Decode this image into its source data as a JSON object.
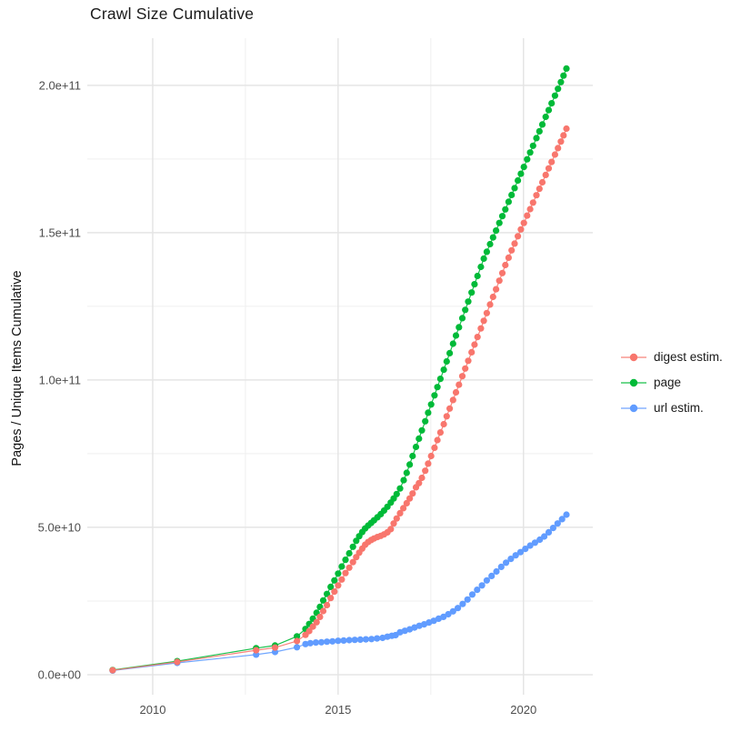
{
  "header": {
    "title": "Crawl Size Cumulative"
  },
  "chart_data": {
    "type": "line",
    "title": "Crawl Size Cumulative",
    "xlabel": "",
    "ylabel": "Pages / Unique Items Cumulative",
    "grid": true,
    "legend_position": "right",
    "value_unit": "1e9 (values below are billions of items)",
    "xlim": [
      2008.235,
      2021.87
    ],
    "ylim_e9": [
      -6.8,
      216.0
    ],
    "x_ticks": [
      {
        "label": "2010",
        "value": 2010
      },
      {
        "label": "2015",
        "value": 2015
      },
      {
        "label": "2020",
        "value": 2020
      }
    ],
    "x_minor": [
      2012.5,
      2017.5
    ],
    "y_ticks": [
      {
        "label": "0.0e+00",
        "value": 0
      },
      {
        "label": "5.0e+10",
        "value": 50
      },
      {
        "label": "1.0e+11",
        "value": 100
      },
      {
        "label": "1.5e+11",
        "value": 150
      },
      {
        "label": "2.0e+11",
        "value": 200
      }
    ],
    "y_minor": [
      25,
      75,
      125,
      175
    ],
    "colors": {
      "digest": "#F8766D",
      "page": "#00BA38",
      "url": "#619CFF",
      "grid_major": "#e5e5e5",
      "grid_minor": "#efefef",
      "tick_text": "#4d4d4d",
      "title_text": "#1a1a1a"
    },
    "series": [
      {
        "name": "digest estim.",
        "color": "#F8766D",
        "points": [
          [
            2008.92,
            1.5
          ],
          [
            2010.66,
            4.3
          ],
          [
            2012.79,
            8.3
          ],
          [
            2013.3,
            9.2
          ],
          [
            2013.89,
            11.4
          ],
          [
            2014.12,
            13.5
          ],
          [
            2014.22,
            14.8
          ],
          [
            2014.32,
            16.3
          ],
          [
            2014.42,
            17.8
          ],
          [
            2014.51,
            19.6
          ],
          [
            2014.6,
            21.6
          ],
          [
            2014.7,
            23.6
          ],
          [
            2014.8,
            26.0
          ],
          [
            2014.9,
            28.2
          ],
          [
            2015.0,
            30.3
          ],
          [
            2015.1,
            32.3
          ],
          [
            2015.2,
            34.5
          ],
          [
            2015.3,
            36.3
          ],
          [
            2015.4,
            38.2
          ],
          [
            2015.49,
            39.9
          ],
          [
            2015.57,
            41.4
          ],
          [
            2015.65,
            42.8
          ],
          [
            2015.73,
            44.1
          ],
          [
            2015.81,
            45.0
          ],
          [
            2015.89,
            45.7
          ],
          [
            2015.97,
            46.2
          ],
          [
            2016.06,
            46.7
          ],
          [
            2016.15,
            47.1
          ],
          [
            2016.24,
            47.6
          ],
          [
            2016.33,
            48.3
          ],
          [
            2016.42,
            49.4
          ],
          [
            2016.5,
            51.3
          ],
          [
            2016.58,
            53.0
          ],
          [
            2016.67,
            54.8
          ],
          [
            2016.76,
            56.5
          ],
          [
            2016.85,
            58.2
          ],
          [
            2016.93,
            59.8
          ],
          [
            2017.01,
            61.5
          ],
          [
            2017.1,
            63.6
          ],
          [
            2017.18,
            65.0
          ],
          [
            2017.26,
            66.8
          ],
          [
            2017.35,
            69.2
          ],
          [
            2017.43,
            71.6
          ],
          [
            2017.51,
            74.2
          ],
          [
            2017.6,
            77.0
          ],
          [
            2017.68,
            79.6
          ],
          [
            2017.76,
            82.2
          ],
          [
            2017.85,
            85.0
          ],
          [
            2017.93,
            87.7
          ],
          [
            2018.01,
            90.3
          ],
          [
            2018.1,
            93.2
          ],
          [
            2018.18,
            95.8
          ],
          [
            2018.26,
            98.4
          ],
          [
            2018.35,
            101.3
          ],
          [
            2018.43,
            103.9
          ],
          [
            2018.51,
            106.5
          ],
          [
            2018.6,
            109.4
          ],
          [
            2018.68,
            112.0
          ],
          [
            2018.76,
            114.6
          ],
          [
            2018.85,
            117.5
          ],
          [
            2018.93,
            120.1
          ],
          [
            2019.01,
            122.7
          ],
          [
            2019.1,
            125.6
          ],
          [
            2019.18,
            128.2
          ],
          [
            2019.26,
            130.8
          ],
          [
            2019.35,
            133.7
          ],
          [
            2019.43,
            136.3
          ],
          [
            2019.51,
            139.0
          ],
          [
            2019.6,
            141.5
          ],
          [
            2019.68,
            144.0
          ],
          [
            2019.76,
            146.3
          ],
          [
            2019.85,
            148.8
          ],
          [
            2019.93,
            151.1
          ],
          [
            2020.01,
            153.3
          ],
          [
            2020.1,
            155.8
          ],
          [
            2020.18,
            158.0
          ],
          [
            2020.26,
            160.2
          ],
          [
            2020.35,
            162.7
          ],
          [
            2020.43,
            164.9
          ],
          [
            2020.51,
            167.1
          ],
          [
            2020.6,
            169.6
          ],
          [
            2020.68,
            171.8
          ],
          [
            2020.76,
            174.0
          ],
          [
            2020.85,
            176.5
          ],
          [
            2020.93,
            178.7
          ],
          [
            2021.01,
            180.9
          ],
          [
            2021.08,
            183.0
          ],
          [
            2021.16,
            185.3
          ]
        ]
      },
      {
        "name": "page",
        "color": "#00BA38",
        "points": [
          [
            2008.92,
            1.6
          ],
          [
            2010.66,
            4.6
          ],
          [
            2012.79,
            9.0
          ],
          [
            2013.3,
            9.9
          ],
          [
            2013.89,
            13.0
          ],
          [
            2014.12,
            15.5
          ],
          [
            2014.22,
            17.2
          ],
          [
            2014.32,
            19.0
          ],
          [
            2014.42,
            21.0
          ],
          [
            2014.51,
            23.0
          ],
          [
            2014.6,
            25.2
          ],
          [
            2014.7,
            27.4
          ],
          [
            2014.8,
            29.8
          ],
          [
            2014.9,
            32.0
          ],
          [
            2015.0,
            34.3
          ],
          [
            2015.1,
            36.7
          ],
          [
            2015.2,
            39.0
          ],
          [
            2015.3,
            41.2
          ],
          [
            2015.4,
            43.4
          ],
          [
            2015.49,
            45.4
          ],
          [
            2015.57,
            47.0
          ],
          [
            2015.65,
            48.4
          ],
          [
            2015.73,
            49.6
          ],
          [
            2015.81,
            50.6
          ],
          [
            2015.89,
            51.5
          ],
          [
            2015.97,
            52.4
          ],
          [
            2016.06,
            53.4
          ],
          [
            2016.15,
            54.5
          ],
          [
            2016.24,
            55.7
          ],
          [
            2016.33,
            57.0
          ],
          [
            2016.42,
            58.4
          ],
          [
            2016.5,
            59.8
          ],
          [
            2016.58,
            61.3
          ],
          [
            2016.67,
            63.2
          ],
          [
            2016.77,
            66.0
          ],
          [
            2016.85,
            68.5
          ],
          [
            2016.93,
            71.3
          ],
          [
            2017.01,
            74.2
          ],
          [
            2017.1,
            77.3
          ],
          [
            2017.18,
            80.1
          ],
          [
            2017.26,
            82.9
          ],
          [
            2017.35,
            86.0
          ],
          [
            2017.43,
            88.9
          ],
          [
            2017.51,
            91.7
          ],
          [
            2017.6,
            94.8
          ],
          [
            2017.68,
            97.6
          ],
          [
            2017.76,
            100.4
          ],
          [
            2017.85,
            103.5
          ],
          [
            2017.93,
            106.3
          ],
          [
            2018.01,
            109.1
          ],
          [
            2018.1,
            112.3
          ],
          [
            2018.18,
            115.1
          ],
          [
            2018.26,
            117.9
          ],
          [
            2018.35,
            121.0
          ],
          [
            2018.43,
            123.8
          ],
          [
            2018.51,
            126.6
          ],
          [
            2018.6,
            129.7
          ],
          [
            2018.68,
            132.5
          ],
          [
            2018.76,
            135.3
          ],
          [
            2018.85,
            138.4
          ],
          [
            2018.93,
            141.2
          ],
          [
            2019.01,
            143.5
          ],
          [
            2019.1,
            146.1
          ],
          [
            2019.18,
            148.4
          ],
          [
            2019.26,
            150.7
          ],
          [
            2019.35,
            153.3
          ],
          [
            2019.43,
            155.6
          ],
          [
            2019.51,
            157.9
          ],
          [
            2019.6,
            160.5
          ],
          [
            2019.68,
            162.8
          ],
          [
            2019.76,
            165.1
          ],
          [
            2019.85,
            167.7
          ],
          [
            2019.93,
            170.0
          ],
          [
            2020.01,
            172.3
          ],
          [
            2020.1,
            174.9
          ],
          [
            2020.18,
            177.2
          ],
          [
            2020.26,
            179.5
          ],
          [
            2020.35,
            182.1
          ],
          [
            2020.43,
            184.4
          ],
          [
            2020.51,
            186.7
          ],
          [
            2020.6,
            189.3
          ],
          [
            2020.68,
            191.6
          ],
          [
            2020.76,
            193.9
          ],
          [
            2020.85,
            196.5
          ],
          [
            2020.93,
            198.8
          ],
          [
            2021.01,
            201.1
          ],
          [
            2021.08,
            203.3
          ],
          [
            2021.16,
            205.7
          ]
        ]
      },
      {
        "name": "url estim.",
        "color": "#619CFF",
        "points": [
          [
            2008.92,
            1.4
          ],
          [
            2010.66,
            4.0
          ],
          [
            2012.79,
            6.8
          ],
          [
            2013.3,
            7.7
          ],
          [
            2013.89,
            9.3
          ],
          [
            2014.12,
            10.4
          ],
          [
            2014.25,
            10.7
          ],
          [
            2014.4,
            10.9
          ],
          [
            2014.55,
            11.0
          ],
          [
            2014.7,
            11.2
          ],
          [
            2014.85,
            11.3
          ],
          [
            2015.0,
            11.5
          ],
          [
            2015.15,
            11.6
          ],
          [
            2015.3,
            11.7
          ],
          [
            2015.45,
            11.8
          ],
          [
            2015.6,
            11.9
          ],
          [
            2015.75,
            12.0
          ],
          [
            2015.9,
            12.1
          ],
          [
            2016.05,
            12.3
          ],
          [
            2016.2,
            12.5
          ],
          [
            2016.33,
            12.9
          ],
          [
            2016.45,
            13.2
          ],
          [
            2016.55,
            13.4
          ],
          [
            2016.67,
            14.4
          ],
          [
            2016.8,
            14.9
          ],
          [
            2016.93,
            15.4
          ],
          [
            2017.06,
            16.0
          ],
          [
            2017.19,
            16.6
          ],
          [
            2017.32,
            17.1
          ],
          [
            2017.45,
            17.7
          ],
          [
            2017.58,
            18.3
          ],
          [
            2017.71,
            19.0
          ],
          [
            2017.84,
            19.6
          ],
          [
            2017.97,
            20.5
          ],
          [
            2018.1,
            21.5
          ],
          [
            2018.23,
            22.6
          ],
          [
            2018.36,
            24.0
          ],
          [
            2018.49,
            25.5
          ],
          [
            2018.62,
            27.2
          ],
          [
            2018.75,
            28.8
          ],
          [
            2018.88,
            30.3
          ],
          [
            2019.01,
            32.0
          ],
          [
            2019.14,
            33.5
          ],
          [
            2019.27,
            35.0
          ],
          [
            2019.4,
            36.6
          ],
          [
            2019.53,
            38.0
          ],
          [
            2019.66,
            39.3
          ],
          [
            2019.79,
            40.5
          ],
          [
            2019.92,
            41.6
          ],
          [
            2020.05,
            42.7
          ],
          [
            2020.18,
            43.8
          ],
          [
            2020.31,
            44.8
          ],
          [
            2020.44,
            45.8
          ],
          [
            2020.56,
            46.9
          ],
          [
            2020.68,
            48.3
          ],
          [
            2020.8,
            49.8
          ],
          [
            2020.92,
            51.3
          ],
          [
            2021.04,
            52.8
          ],
          [
            2021.16,
            54.3
          ]
        ]
      }
    ]
  },
  "legend": {
    "items": [
      {
        "label": "digest estim.",
        "color": "#F8766D"
      },
      {
        "label": "page",
        "color": "#00BA38"
      },
      {
        "label": "url estim.",
        "color": "#619CFF"
      }
    ]
  }
}
